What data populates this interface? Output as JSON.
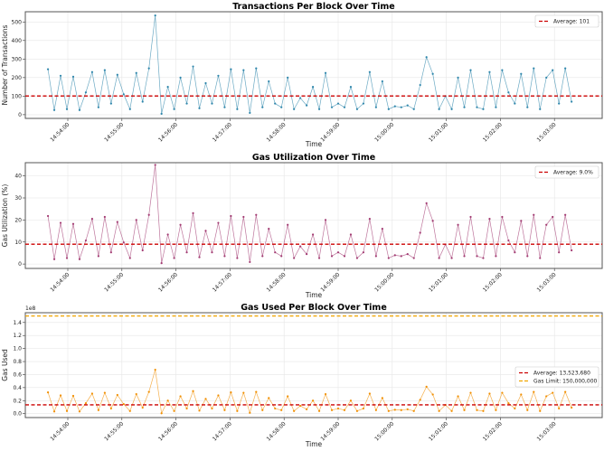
{
  "x": [
    "14:53:38",
    "14:53:45",
    "14:53:52",
    "14:53:59",
    "14:54:06",
    "14:54:13",
    "14:54:20",
    "14:54:27",
    "14:54:34",
    "14:54:41",
    "14:54:48",
    "14:54:55",
    "14:55:02",
    "14:55:09",
    "14:55:16",
    "14:55:23",
    "14:55:30",
    "14:55:37",
    "14:55:44",
    "14:55:51",
    "14:55:58",
    "14:56:05",
    "14:56:12",
    "14:56:19",
    "14:56:26",
    "14:56:33",
    "14:56:40",
    "14:56:47",
    "14:56:54",
    "14:57:01",
    "14:57:08",
    "14:57:15",
    "14:57:22",
    "14:57:29",
    "14:57:36",
    "14:57:43",
    "14:57:50",
    "14:57:57",
    "14:58:04",
    "14:58:11",
    "14:58:18",
    "14:58:25",
    "14:58:32",
    "14:58:39",
    "14:58:46",
    "14:58:53",
    "14:59:00",
    "14:59:07",
    "14:59:14",
    "14:59:21",
    "14:59:28",
    "14:59:35",
    "14:59:42",
    "14:59:49",
    "14:59:56",
    "15:00:03",
    "15:00:10",
    "15:00:17",
    "15:00:24",
    "15:00:31",
    "15:00:38",
    "15:00:45",
    "15:00:52",
    "15:00:59",
    "15:01:06",
    "15:01:13",
    "15:01:20",
    "15:01:27",
    "15:01:34",
    "15:01:41",
    "15:01:48",
    "15:01:55",
    "15:02:02",
    "15:02:09",
    "15:02:16",
    "15:02:23",
    "15:02:30",
    "15:02:37",
    "15:02:44",
    "15:02:51",
    "15:02:58",
    "15:03:05",
    "15:03:12",
    "15:03:19"
  ],
  "chart_data": [
    {
      "type": "line",
      "title": "Transactions Per Block Over Time",
      "xlabel": "Time",
      "ylabel": "Number of Transactions",
      "ylim": [
        -20,
        555
      ],
      "yticks": [
        0,
        100,
        200,
        300,
        400,
        500
      ],
      "ytick_labels": [
        "0",
        "100",
        "200",
        "300",
        "400",
        "500"
      ],
      "xticks": [
        "14:54:00",
        "14:55:00",
        "14:56:00",
        "14:57:00",
        "14:58:00",
        "14:59:00",
        "15:00:00",
        "15:01:00",
        "15:02:00",
        "15:03:00"
      ],
      "grid": true,
      "legend_position": "top-right",
      "color": "#2e86ab",
      "values": [
        245,
        25,
        210,
        30,
        205,
        25,
        120,
        230,
        40,
        240,
        60,
        215,
        110,
        30,
        225,
        70,
        250,
        535,
        5,
        150,
        30,
        200,
        60,
        260,
        35,
        170,
        60,
        210,
        40,
        245,
        30,
        240,
        10,
        250,
        40,
        180,
        60,
        40,
        200,
        30,
        90,
        50,
        150,
        30,
        225,
        40,
        60,
        40,
        150,
        30,
        60,
        230,
        40,
        180,
        30,
        45,
        40,
        50,
        30,
        160,
        310,
        220,
        30,
        100,
        30,
        200,
        40,
        240,
        40,
        30,
        230,
        40,
        240,
        120,
        60,
        220,
        40,
        250,
        30,
        200,
        240,
        60,
        250,
        70
      ],
      "hlines": [
        {
          "name": "Average: 101",
          "value": 101,
          "color": "#cc0000"
        }
      ]
    },
    {
      "type": "line",
      "title": "Gas Utilization Over Time",
      "xlabel": "Time",
      "ylabel": "Gas Utilization (%)",
      "ylim": [
        -2,
        46
      ],
      "yticks": [
        0,
        10,
        20,
        30,
        40
      ],
      "ytick_labels": [
        "0",
        "10",
        "20",
        "30",
        "40"
      ],
      "xticks": [
        "14:54:00",
        "14:55:00",
        "14:56:00",
        "14:57:00",
        "14:58:00",
        "14:59:00",
        "15:00:00",
        "15:01:00",
        "15:02:00",
        "15:03:00"
      ],
      "grid": true,
      "legend_position": "top-right",
      "color": "#a23b72",
      "values": [
        21.8,
        2.2,
        18.7,
        2.7,
        18.2,
        2.2,
        10.7,
        20.5,
        3.6,
        21.4,
        5.3,
        19.1,
        9.8,
        2.7,
        20.0,
        6.2,
        22.3,
        45.0,
        0.4,
        13.4,
        2.7,
        17.8,
        5.3,
        23.1,
        3.1,
        15.1,
        5.3,
        18.7,
        3.6,
        21.8,
        2.7,
        21.4,
        0.9,
        22.3,
        3.6,
        16.0,
        5.3,
        3.6,
        17.8,
        2.7,
        8.0,
        4.5,
        13.4,
        2.7,
        20.0,
        3.6,
        5.3,
        3.6,
        13.4,
        2.7,
        5.3,
        20.5,
        3.6,
        16.0,
        2.7,
        4.0,
        3.6,
        4.5,
        2.7,
        14.2,
        27.6,
        19.6,
        2.7,
        8.9,
        2.7,
        17.8,
        3.6,
        21.4,
        3.6,
        2.7,
        20.5,
        3.6,
        21.4,
        10.7,
        5.3,
        19.6,
        3.6,
        22.3,
        2.7,
        17.8,
        21.4,
        5.3,
        22.3,
        6.2
      ],
      "hlines": [
        {
          "name": "Average: 9.0%",
          "value": 9.0,
          "color": "#cc0000"
        }
      ]
    },
    {
      "type": "line",
      "title": "Gas Used Per Block Over Time",
      "xlabel": "Time",
      "ylabel": "Gas Used",
      "y_multiplier": "1e8",
      "ylim": [
        -6000000,
        155000000
      ],
      "yticks": [
        0,
        20000000,
        40000000,
        60000000,
        80000000,
        100000000,
        120000000,
        140000000
      ],
      "ytick_labels": [
        "0.0",
        "0.2",
        "0.4",
        "0.6",
        "0.8",
        "1.0",
        "1.2",
        "1.4"
      ],
      "xticks": [
        "14:54:00",
        "14:55:00",
        "14:56:00",
        "14:57:00",
        "14:58:00",
        "14:59:00",
        "15:00:00",
        "15:01:00",
        "15:02:00",
        "15:03:00"
      ],
      "grid": true,
      "legend_position": "center-right",
      "color": "#f18f01",
      "values": [
        32700000,
        3300000,
        28050000,
        4050000,
        27300000,
        3300000,
        16050000,
        30750000,
        5400000,
        32100000,
        7950000,
        28650000,
        14700000,
        4050000,
        30000000,
        9300000,
        33450000,
        67500000,
        600000,
        20100000,
        4050000,
        26700000,
        7950000,
        34650000,
        4650000,
        22650000,
        7950000,
        28050000,
        5400000,
        32700000,
        4050000,
        32100000,
        1350000,
        33450000,
        5400000,
        24000000,
        7950000,
        5400000,
        26700000,
        4050000,
        12000000,
        6750000,
        20100000,
        4050000,
        30000000,
        5400000,
        7950000,
        5400000,
        20100000,
        4050000,
        7950000,
        30750000,
        5400000,
        24000000,
        4050000,
        6000000,
        5400000,
        6750000,
        4050000,
        21300000,
        41400000,
        29400000,
        4050000,
        13350000,
        4050000,
        26700000,
        5400000,
        32100000,
        5400000,
        4050000,
        30750000,
        5400000,
        32100000,
        16050000,
        7950000,
        29400000,
        5400000,
        33450000,
        4050000,
        26700000,
        32100000,
        7950000,
        33450000,
        9300000
      ],
      "hlines": [
        {
          "name": "Average: 13,523,680",
          "value": 13523680,
          "color": "#cc0000"
        },
        {
          "name": "Gas Limit: 150,000,000",
          "value": 150000000,
          "color": "#f0a500"
        }
      ]
    }
  ]
}
